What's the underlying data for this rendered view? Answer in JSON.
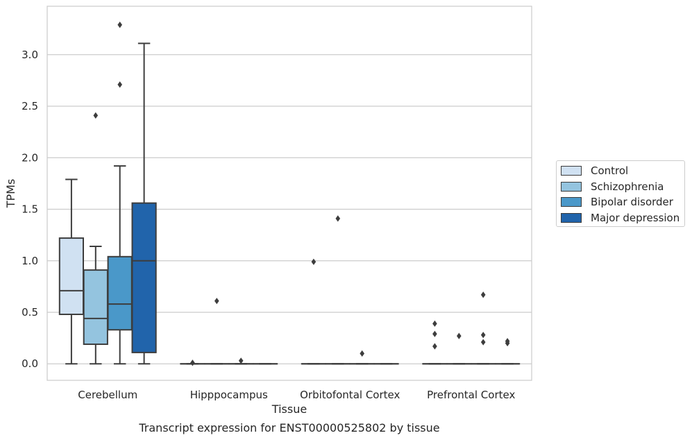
{
  "chart_data": {
    "type": "box",
    "caption": "Transcript expression for ENST00000525802 by tissue",
    "xlabel": "Tissue",
    "ylabel": "TPMs",
    "ylim": [
      -0.16,
      3.47
    ],
    "yticks": [
      0.0,
      0.5,
      1.0,
      1.5,
      2.0,
      2.5,
      3.0
    ],
    "ytick_labels": [
      "0.0",
      "0.5",
      "1.0",
      "1.5",
      "2.0",
      "2.5",
      "3.0"
    ],
    "grid": "horizontal",
    "legend_position": "right-center",
    "categories": [
      "Cerebellum",
      "Hipppocampus",
      "Orbitofontal Cortex",
      "Prefrontal Cortex"
    ],
    "series": [
      {
        "name": "Control",
        "color": "#d0e1f2",
        "boxes": [
          {
            "whisker_low": 0.0,
            "q1": 0.48,
            "median": 0.71,
            "q3": 1.22,
            "whisker_high": 1.79,
            "outliers": []
          },
          {
            "whisker_low": 0.0,
            "q1": 0.0,
            "median": 0.0,
            "q3": 0.0,
            "whisker_high": 0.0,
            "outliers": [
              0.01
            ]
          },
          {
            "whisker_low": 0.0,
            "q1": 0.0,
            "median": 0.0,
            "q3": 0.0,
            "whisker_high": 0.0,
            "outliers": [
              0.99
            ]
          },
          {
            "whisker_low": 0.0,
            "q1": 0.0,
            "median": 0.0,
            "q3": 0.0,
            "whisker_high": 0.0,
            "outliers": [
              0.17,
              0.29,
              0.39
            ]
          }
        ]
      },
      {
        "name": "Schizophrenia",
        "color": "#94c4df",
        "boxes": [
          {
            "whisker_low": 0.0,
            "q1": 0.19,
            "median": 0.44,
            "q3": 0.91,
            "whisker_high": 1.14,
            "outliers": [
              2.41
            ]
          },
          {
            "whisker_low": 0.0,
            "q1": 0.0,
            "median": 0.0,
            "q3": 0.0,
            "whisker_high": 0.0,
            "outliers": [
              0.61
            ]
          },
          {
            "whisker_low": 0.0,
            "q1": 0.0,
            "median": 0.0,
            "q3": 0.0,
            "whisker_high": 0.0,
            "outliers": [
              1.41
            ]
          },
          {
            "whisker_low": 0.0,
            "q1": 0.0,
            "median": 0.0,
            "q3": 0.0,
            "whisker_high": 0.0,
            "outliers": [
              0.27
            ]
          }
        ]
      },
      {
        "name": "Bipolar disorder",
        "color": "#4a98c9",
        "boxes": [
          {
            "whisker_low": 0.0,
            "q1": 0.33,
            "median": 0.58,
            "q3": 1.04,
            "whisker_high": 1.92,
            "outliers": [
              2.71,
              3.29
            ]
          },
          {
            "whisker_low": 0.0,
            "q1": 0.0,
            "median": 0.0,
            "q3": 0.0,
            "whisker_high": 0.0,
            "outliers": [
              0.03
            ]
          },
          {
            "whisker_low": 0.0,
            "q1": 0.0,
            "median": 0.0,
            "q3": 0.0,
            "whisker_high": 0.0,
            "outliers": [
              0.1
            ]
          },
          {
            "whisker_low": 0.0,
            "q1": 0.0,
            "median": 0.0,
            "q3": 0.0,
            "whisker_high": 0.0,
            "outliers": [
              0.21,
              0.28,
              0.67
            ]
          }
        ]
      },
      {
        "name": "Major depression",
        "color": "#2164ab",
        "boxes": [
          {
            "whisker_low": 0.0,
            "q1": 0.11,
            "median": 1.0,
            "q3": 1.56,
            "whisker_high": 3.11,
            "outliers": []
          },
          {
            "whisker_low": 0.0,
            "q1": 0.0,
            "median": 0.0,
            "q3": 0.0,
            "whisker_high": 0.0,
            "outliers": []
          },
          {
            "whisker_low": 0.0,
            "q1": 0.0,
            "median": 0.0,
            "q3": 0.0,
            "whisker_high": 0.0,
            "outliers": []
          },
          {
            "whisker_low": 0.0,
            "q1": 0.0,
            "median": 0.0,
            "q3": 0.0,
            "whisker_high": 0.0,
            "outliers": [
              0.2,
              0.22
            ]
          }
        ]
      }
    ]
  }
}
